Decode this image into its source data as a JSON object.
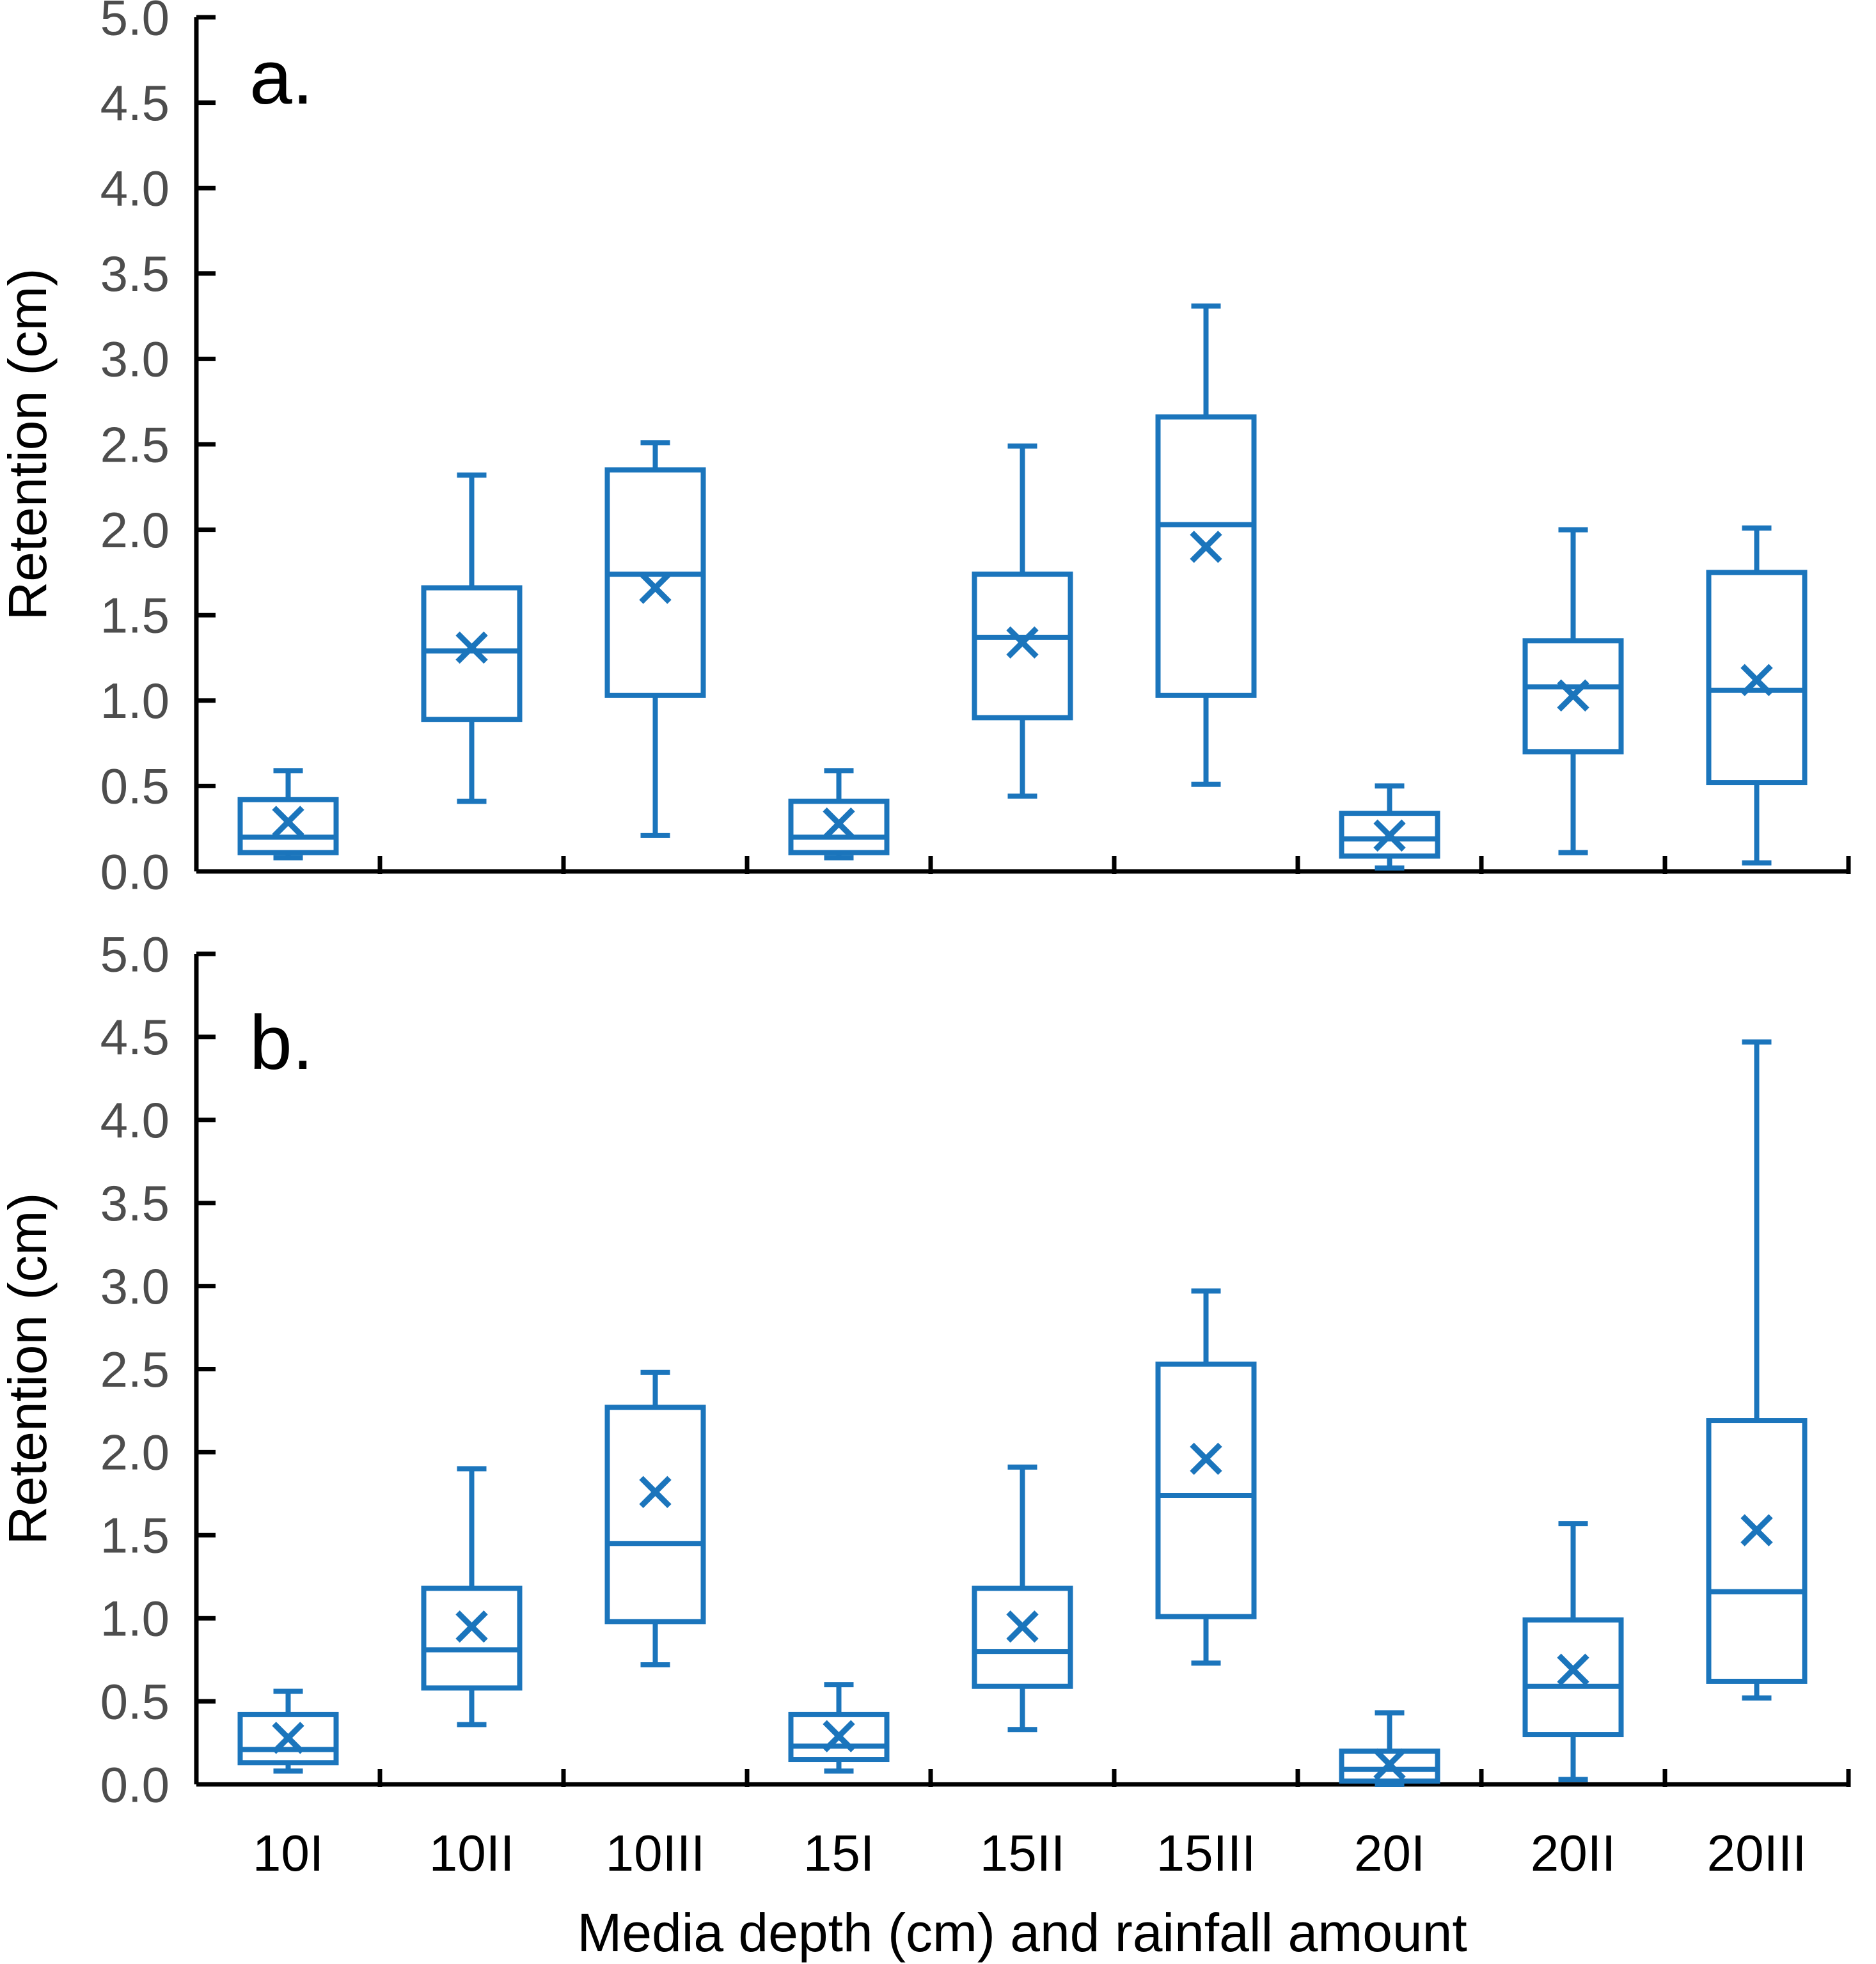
{
  "figure": {
    "panel_a_label": "a.",
    "panel_b_label": "b.",
    "y_axis_label": "Retention (cm)",
    "x_axis_label": "Media depth (cm) and rainfall amount"
  },
  "colors": {
    "box_blue": "#1b75bc",
    "axis_black": "#000000",
    "tick_label_gray": "#4d4d4d"
  },
  "chart_data": [
    {
      "type": "boxplot",
      "panel": "a",
      "panel_label": "a.",
      "ylabel": "Retention (cm)",
      "xlabel": "Media depth (cm) and rainfall amount",
      "ylim": [
        0.0,
        5.0
      ],
      "ytick_step": 0.5,
      "ytick_labels": [
        "5.0",
        "4.5",
        "4.0",
        "3.5",
        "3.0",
        "2.5",
        "2.0",
        "1.5",
        "1.0",
        "0.5",
        "0.0"
      ],
      "grid": false,
      "legend": "none",
      "categories": [
        "10I",
        "10II",
        "10III",
        "15I",
        "15II",
        "15III",
        "20I",
        "20II",
        "20III"
      ],
      "series": [
        {
          "category": "10I",
          "min": 0.08,
          "q1": 0.11,
          "median": 0.2,
          "q3": 0.42,
          "max": 0.59,
          "mean": 0.29
        },
        {
          "category": "10II",
          "min": 0.41,
          "q1": 0.89,
          "median": 1.29,
          "q3": 1.66,
          "max": 2.32,
          "mean": 1.31
        },
        {
          "category": "10III",
          "min": 0.21,
          "q1": 1.03,
          "median": 1.74,
          "q3": 2.35,
          "max": 2.51,
          "mean": 1.66
        },
        {
          "category": "15I",
          "min": 0.08,
          "q1": 0.11,
          "median": 0.2,
          "q3": 0.41,
          "max": 0.59,
          "mean": 0.28
        },
        {
          "category": "15II",
          "min": 0.44,
          "q1": 0.9,
          "median": 1.37,
          "q3": 1.74,
          "max": 2.49,
          "mean": 1.34
        },
        {
          "category": "15III",
          "min": 0.51,
          "q1": 1.03,
          "median": 2.03,
          "q3": 2.66,
          "max": 3.31,
          "mean": 1.9
        },
        {
          "category": "20I",
          "min": 0.02,
          "q1": 0.09,
          "median": 0.19,
          "q3": 0.34,
          "max": 0.5,
          "mean": 0.21
        },
        {
          "category": "20II",
          "min": 0.11,
          "q1": 0.7,
          "median": 1.08,
          "q3": 1.35,
          "max": 2.0,
          "mean": 1.03
        },
        {
          "category": "20III",
          "min": 0.05,
          "q1": 0.52,
          "median": 1.06,
          "q3": 1.75,
          "max": 2.01,
          "mean": 1.12
        }
      ]
    },
    {
      "type": "boxplot",
      "panel": "b",
      "panel_label": "b.",
      "ylabel": "Retention (cm)",
      "xlabel": "Media depth (cm) and rainfall amount",
      "ylim": [
        0.0,
        5.0
      ],
      "ytick_step": 0.5,
      "ytick_labels": [
        "5.0",
        "4.5",
        "4.0",
        "3.5",
        "3.0",
        "2.5",
        "2.0",
        "1.5",
        "1.0",
        "0.5",
        "0.0"
      ],
      "grid": false,
      "legend": "none",
      "categories": [
        "10I",
        "10II",
        "10III",
        "15I",
        "15II",
        "15III",
        "20I",
        "20II",
        "20III"
      ],
      "series": [
        {
          "category": "10I",
          "min": 0.08,
          "q1": 0.13,
          "median": 0.21,
          "q3": 0.42,
          "max": 0.56,
          "mean": 0.28
        },
        {
          "category": "10II",
          "min": 0.36,
          "q1": 0.58,
          "median": 0.81,
          "q3": 1.18,
          "max": 1.9,
          "mean": 0.95
        },
        {
          "category": "10III",
          "min": 0.72,
          "q1": 0.98,
          "median": 1.45,
          "q3": 2.27,
          "max": 2.48,
          "mean": 1.76
        },
        {
          "category": "15I",
          "min": 0.08,
          "q1": 0.15,
          "median": 0.23,
          "q3": 0.42,
          "max": 0.6,
          "mean": 0.29
        },
        {
          "category": "15II",
          "min": 0.33,
          "q1": 0.59,
          "median": 0.8,
          "q3": 1.18,
          "max": 1.91,
          "mean": 0.95
        },
        {
          "category": "15III",
          "min": 0.73,
          "q1": 1.01,
          "median": 1.74,
          "q3": 2.53,
          "max": 2.97,
          "mean": 1.96
        },
        {
          "category": "20I",
          "min": 0.0,
          "q1": 0.02,
          "median": 0.09,
          "q3": 0.2,
          "max": 0.43,
          "mean": 0.12
        },
        {
          "category": "20II",
          "min": 0.03,
          "q1": 0.3,
          "median": 0.59,
          "q3": 0.99,
          "max": 1.57,
          "mean": 0.69
        },
        {
          "category": "20III",
          "min": 0.52,
          "q1": 0.62,
          "median": 1.16,
          "q3": 2.19,
          "max": 4.47,
          "mean": 1.53
        }
      ]
    }
  ]
}
